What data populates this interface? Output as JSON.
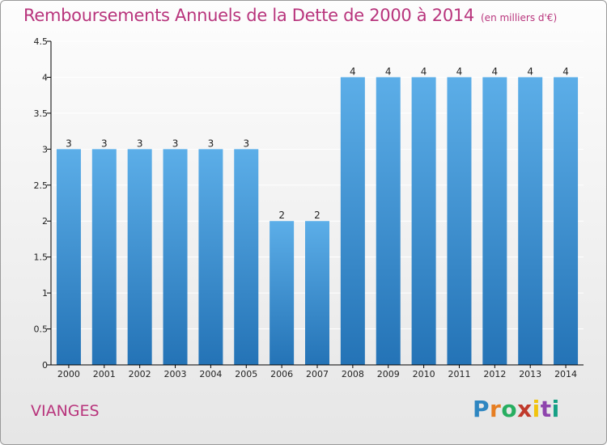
{
  "header": {
    "title": "Remboursements Annuels de la Dette de 2000 à 2014",
    "unit": "(en milliers d'€)"
  },
  "footer": {
    "commune": "VIANGES",
    "brand": "Proxiti"
  },
  "colors": {
    "title": "#b8347c",
    "bar_top": "#5caee8",
    "bar_bottom": "#2473b6",
    "axis": "#000000",
    "gridline": "#ffffff"
  },
  "chart_data": {
    "type": "bar",
    "title": "Remboursements Annuels de la Dette de 2000 à 2014",
    "xlabel": "",
    "ylabel": "",
    "categories": [
      "2000",
      "2001",
      "2002",
      "2003",
      "2004",
      "2005",
      "2006",
      "2007",
      "2008",
      "2009",
      "2010",
      "2011",
      "2012",
      "2013",
      "2014"
    ],
    "values": [
      3,
      3,
      3,
      3,
      3,
      3,
      2,
      2,
      4,
      4,
      4,
      4,
      4,
      4,
      4
    ],
    "ylim": [
      0,
      4.5
    ],
    "y_ticks": [
      "0",
      "0.5",
      "1",
      "1.5",
      "2",
      "2.5",
      "3",
      "3.5",
      "4",
      "4.5"
    ],
    "grid": true
  }
}
